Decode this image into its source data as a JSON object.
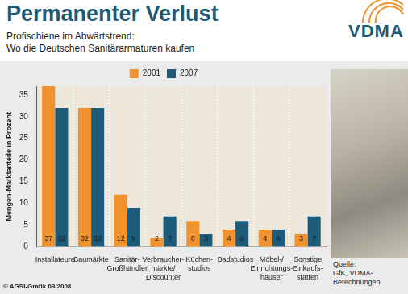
{
  "chart_data": {
    "type": "bar",
    "title": "Permanenter Verlust",
    "subtitle": "Profischiene im Abwärtstrend:\nWo die Deutschen Sanitärarmaturen kaufen",
    "logo": "VDMA",
    "y_label": "Mengen-Marktanteile in Prozent",
    "categories": [
      "Installateure",
      "Baumärkte",
      "Sanitär-\nGroßhändler",
      "Verbraucher-\nmärkte/\nDiscounter",
      "Küchen-\nstudios",
      "Badstudios",
      "Möbel-/\nEinrichtungs-\nhäuser",
      "Sonstige\nEinkaufs-\nstätten"
    ],
    "series": [
      {
        "name": "2001",
        "color": "#f0922e",
        "values": [
          37,
          32,
          12,
          2,
          6,
          4,
          4,
          3
        ]
      },
      {
        "name": "2007",
        "color": "#1c5c7a",
        "values": [
          32,
          32,
          9,
          7,
          3,
          6,
          4,
          7
        ]
      }
    ],
    "ylim": [
      0,
      37
    ],
    "yticks": [
      0,
      5,
      10,
      15,
      20,
      25,
      30,
      35
    ],
    "grid": false,
    "legend": "top",
    "data_labels": true,
    "source": "Quelle:\nGfK, VDMA-Berechnungen",
    "credit": "© AGSI-Grafik 09/2008"
  }
}
